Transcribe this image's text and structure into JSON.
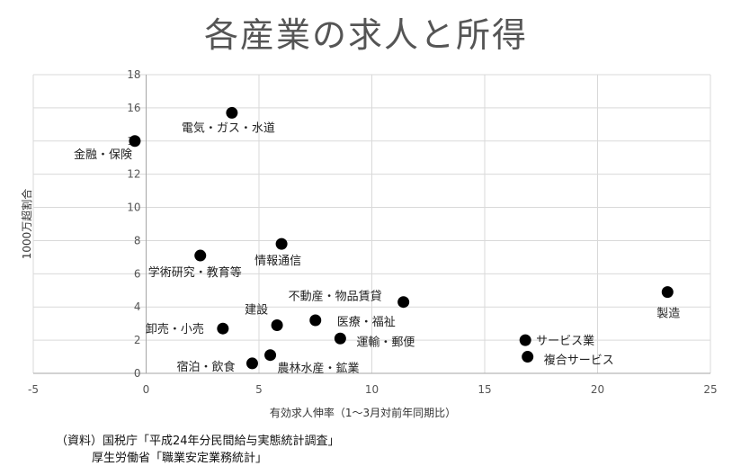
{
  "title": "各産業の求人と所得",
  "source": {
    "line1": "（資料）国税庁「平成24年分民間給与実態統計調査」",
    "line2": "厚生労働省「職業安定業務統計」"
  },
  "chart_data": {
    "type": "scatter",
    "title": "各産業の求人と所得",
    "xlabel": "有効求人伸率（1～3月対前年同期比）",
    "ylabel": "1000万超割合",
    "xlim": [
      -5,
      25
    ],
    "ylim": [
      0,
      18
    ],
    "xticks": [
      -5,
      0,
      5,
      10,
      15,
      20,
      25
    ],
    "yticks": [
      0,
      2,
      4,
      6,
      8,
      10,
      12,
      14,
      16,
      18
    ],
    "grid": true,
    "points": [
      {
        "label": "電気・ガス・水道",
        "x": 3.8,
        "y": 15.7
      },
      {
        "label": "金融・保険",
        "x": -0.5,
        "y": 14.0
      },
      {
        "label": "情報通信",
        "x": 6.0,
        "y": 7.8
      },
      {
        "label": "学術研究・教育等",
        "x": 2.4,
        "y": 7.1
      },
      {
        "label": "不動産・物品賃貸",
        "x": 11.4,
        "y": 4.3
      },
      {
        "label": "建設",
        "x": 5.8,
        "y": 2.9
      },
      {
        "label": "医療・福祉",
        "x": 7.5,
        "y": 3.2
      },
      {
        "label": "卸売・小売",
        "x": 3.4,
        "y": 2.7
      },
      {
        "label": "運輸・郵便",
        "x": 8.6,
        "y": 2.1
      },
      {
        "label": "宿泊・飲食",
        "x": 4.7,
        "y": 0.6
      },
      {
        "label": "農林水産・鉱業",
        "x": 5.5,
        "y": 1.1
      },
      {
        "label": "製造",
        "x": 23.1,
        "y": 4.9
      },
      {
        "label": "サービス業",
        "x": 16.8,
        "y": 2.0
      },
      {
        "label": "複合サービス",
        "x": 16.9,
        "y": 1.0
      }
    ]
  }
}
